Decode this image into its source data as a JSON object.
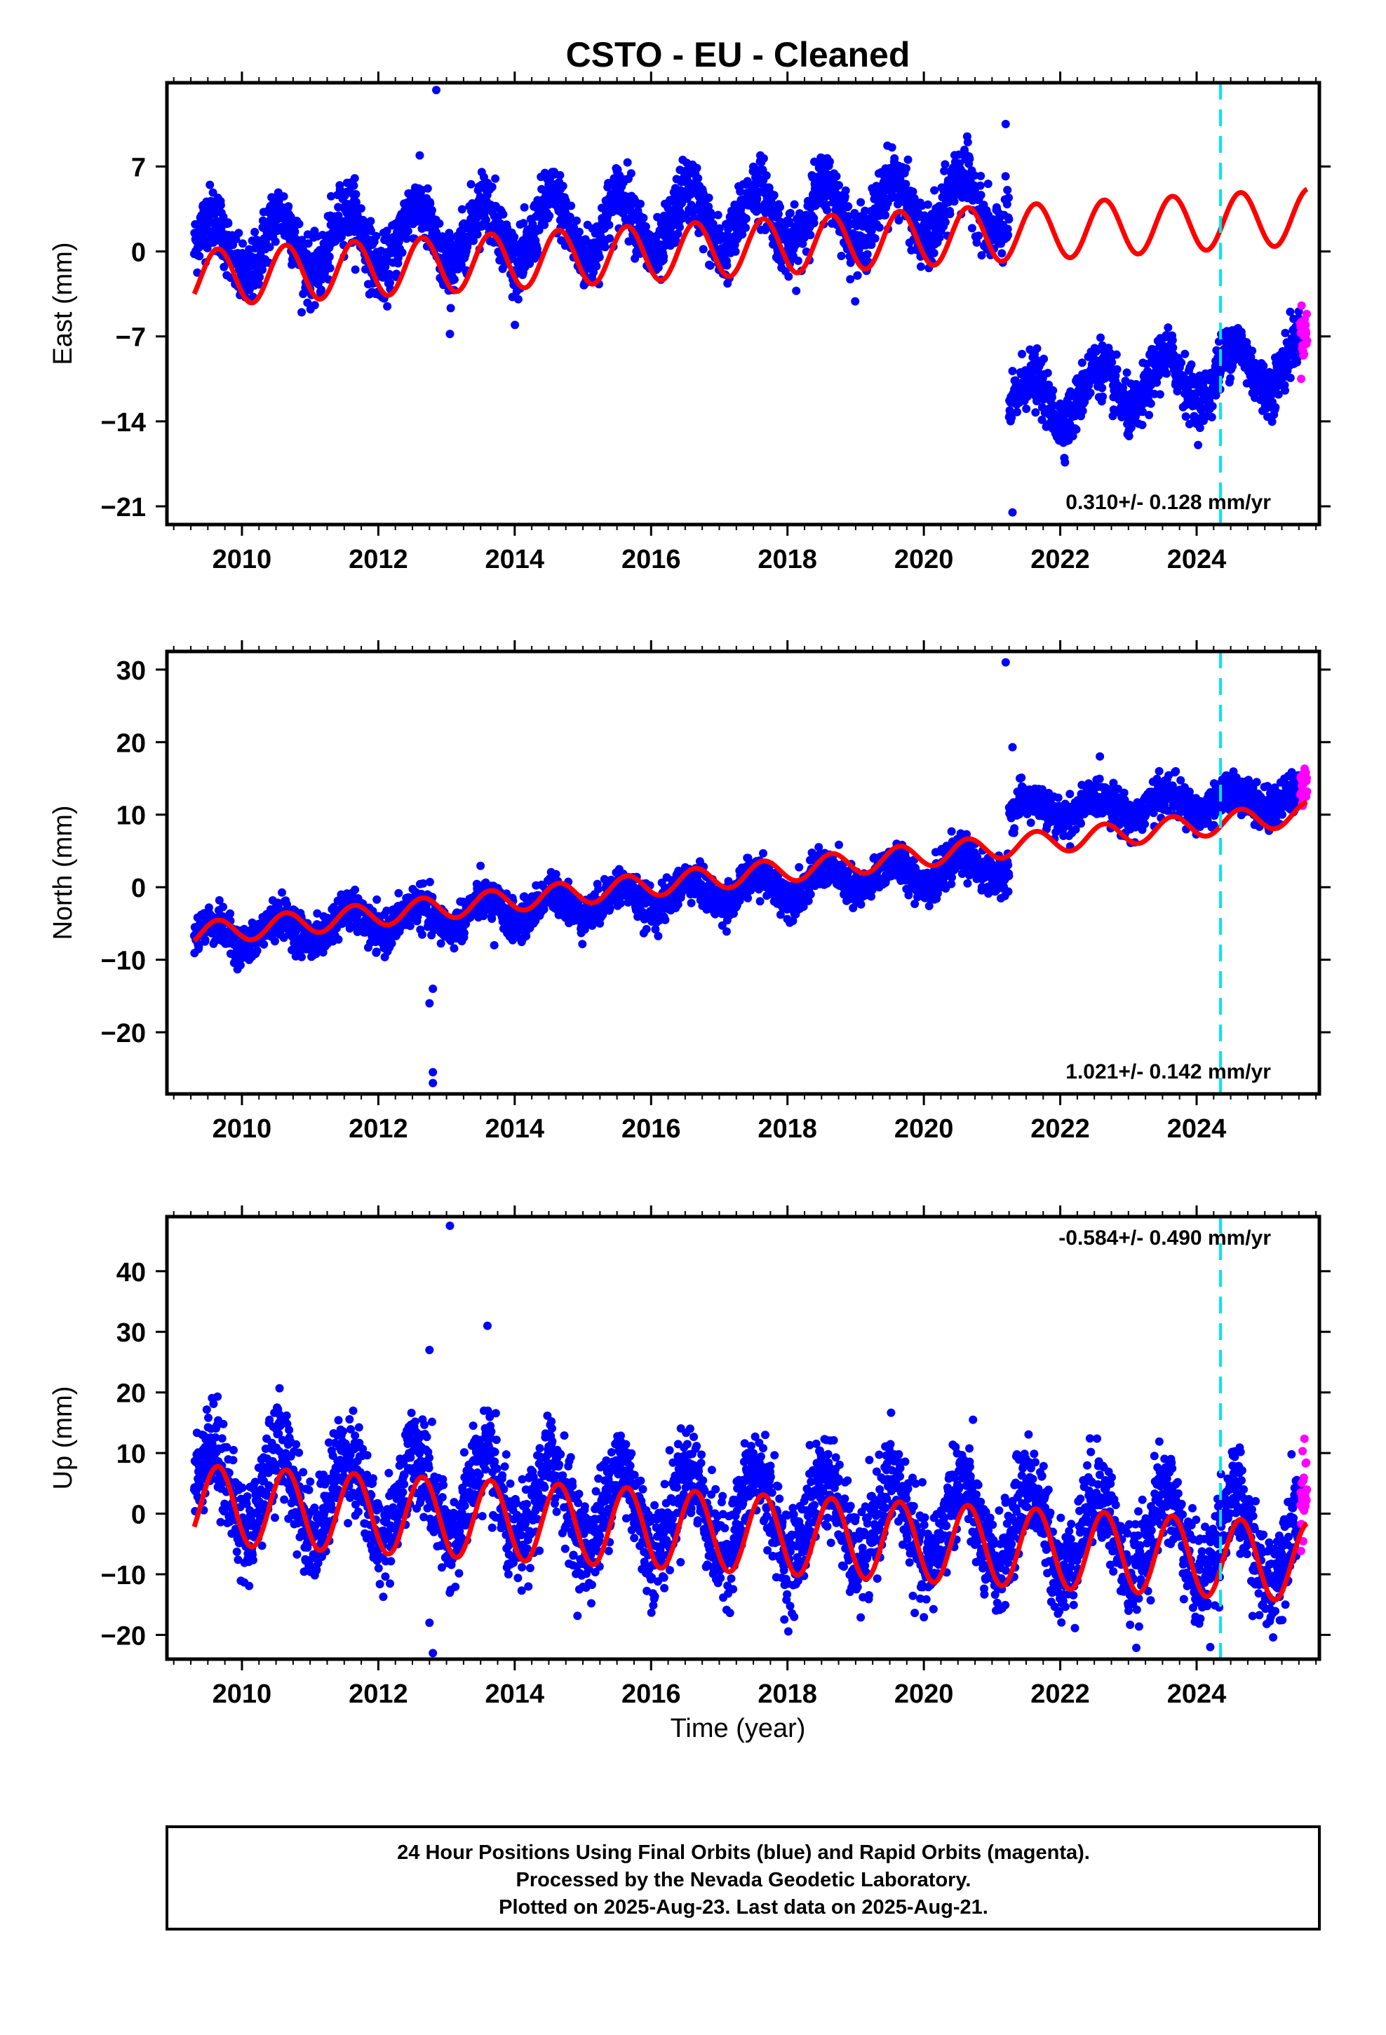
{
  "title": "CSTO  - EU - Cleaned",
  "colors": {
    "final_orbits": "#0000ff",
    "rapid_orbits": "#ff00ff",
    "model_fit": "#ff0000",
    "equipment_change": "#00e5ee"
  },
  "footer": {
    "line1": "24 Hour Positions Using Final Orbits (blue) and Rapid Orbits (magenta).",
    "line2": "Processed by the Nevada Geodetic Laboratory.",
    "line3": "Plotted on 2025-Aug-23. Last data on 2025-Aug-21."
  },
  "chart_data": [
    {
      "type": "scatter",
      "component": "east",
      "ylabel": "East (mm)",
      "xlabel": "",
      "xlim": [
        2008.9,
        2025.8
      ],
      "ylim": [
        -22.5,
        13.9
      ],
      "xticks": [
        2010,
        2012,
        2014,
        2016,
        2018,
        2020,
        2022,
        2024
      ],
      "xtick_labels": [
        "2010",
        "2012",
        "2014",
        "2016",
        "2018",
        "2020",
        "2022",
        "2024"
      ],
      "yticks": [
        7,
        0,
        -7,
        -14,
        -21
      ],
      "ytick_labels": [
        "7",
        "0",
        "−7",
        "−14",
        "−21"
      ],
      "rate_label": "0.310+/- 0.128 mm/yr",
      "rate_position": "bottom-right",
      "equipment_change_year": 2024.35,
      "data_span": [
        2009.3,
        2025.62
      ],
      "rapid_span": [
        2025.52,
        2025.62
      ],
      "fit": {
        "slope_mm_per_yr": 0.31,
        "annual_amplitude_mm": 2.3,
        "offset_at_2009_3_mm": -2.2
      },
      "segments": [
        {
          "start": 2009.3,
          "end": 2021.25,
          "center_at_2009_3": 0.2,
          "trend": 0.31,
          "annual_amp": 2.6,
          "noise": 1.3
        },
        {
          "start": 2021.25,
          "end": 2025.62,
          "center_at_2021_5": -12.5,
          "trend": 0.9,
          "annual_amp": 2.1,
          "noise": 1.1
        }
      ],
      "outliers": [
        {
          "x": 2012.85,
          "y": 13.3
        },
        {
          "x": 2013.05,
          "y": -6.8
        },
        {
          "x": 2021.2,
          "y": 10.5
        },
        {
          "x": 2021.3,
          "y": -21.5
        }
      ]
    },
    {
      "type": "scatter",
      "component": "north",
      "ylabel": "North (mm)",
      "xlabel": "",
      "xlim": [
        2008.9,
        2025.8
      ],
      "ylim": [
        -28.5,
        32.5
      ],
      "xticks": [
        2010,
        2012,
        2014,
        2016,
        2018,
        2020,
        2022,
        2024
      ],
      "xtick_labels": [
        "2010",
        "2012",
        "2014",
        "2016",
        "2018",
        "2020",
        "2022",
        "2024"
      ],
      "yticks": [
        30,
        20,
        10,
        0,
        -10,
        -20
      ],
      "ytick_labels": [
        "30",
        "20",
        "10",
        "0",
        "−10",
        "−20"
      ],
      "rate_label": "1.021+/- 0.142 mm/yr",
      "rate_position": "bottom-right",
      "equipment_change_year": 2024.35,
      "data_span": [
        2009.3,
        2025.62
      ],
      "rapid_span": [
        2025.52,
        2025.62
      ],
      "fit": {
        "slope_mm_per_yr": 1.02,
        "annual_amplitude_mm": 1.6,
        "offset_at_2009_3_mm": -6.5
      },
      "segments": [
        {
          "start": 2009.3,
          "end": 2021.25,
          "center_at_2009_3": -7.0,
          "trend": 0.85,
          "annual_amp": 1.8,
          "noise": 1.3
        },
        {
          "start": 2021.25,
          "end": 2025.62,
          "center_at_2021_5": 10.5,
          "trend": 0.45,
          "annual_amp": 1.5,
          "noise": 1.3
        }
      ],
      "outliers": [
        {
          "x": 2021.2,
          "y": 31.0
        },
        {
          "x": 2012.8,
          "y": -27.0
        },
        {
          "x": 2012.8,
          "y": -25.5
        },
        {
          "x": 2012.75,
          "y": -16.0
        },
        {
          "x": 2012.8,
          "y": -14.0
        },
        {
          "x": 2013.7,
          "y": -8.0
        },
        {
          "x": 2021.3,
          "y": 19.3
        }
      ]
    },
    {
      "type": "scatter",
      "component": "up",
      "ylabel": "Up (mm)",
      "xlabel": "Time (year)",
      "xlim": [
        2008.9,
        2025.8
      ],
      "ylim": [
        -24.0,
        49.0
      ],
      "xticks": [
        2010,
        2012,
        2014,
        2016,
        2018,
        2020,
        2022,
        2024
      ],
      "xtick_labels": [
        "2010",
        "2012",
        "2014",
        "2016",
        "2018",
        "2020",
        "2022",
        "2024"
      ],
      "yticks": [
        40,
        30,
        20,
        10,
        0,
        -10,
        -20
      ],
      "ytick_labels": [
        "40",
        "30",
        "20",
        "10",
        "0",
        "−10",
        "−20"
      ],
      "rate_label": "-0.584+/- 0.490 mm/yr",
      "rate_position": "top-right",
      "equipment_change_year": 2024.35,
      "data_span": [
        2009.3,
        2025.62
      ],
      "rapid_span": [
        2025.52,
        2025.62
      ],
      "fit": {
        "slope_mm_per_yr": -0.584,
        "annual_amplitude_mm": 6.5,
        "offset_at_2009_3_mm": 1.5
      },
      "segments": [
        {
          "start": 2009.3,
          "end": 2025.62,
          "center_at_2009_3": 4.5,
          "trend": -0.584,
          "annual_amp": 7.0,
          "noise": 4.0
        }
      ],
      "outliers": [
        {
          "x": 2013.05,
          "y": 47.5
        },
        {
          "x": 2013.6,
          "y": 31.0
        },
        {
          "x": 2012.75,
          "y": 27.0
        },
        {
          "x": 2012.8,
          "y": -23.0
        },
        {
          "x": 2024.2,
          "y": -22.0
        },
        {
          "x": 2012.75,
          "y": -18.0
        }
      ]
    }
  ]
}
